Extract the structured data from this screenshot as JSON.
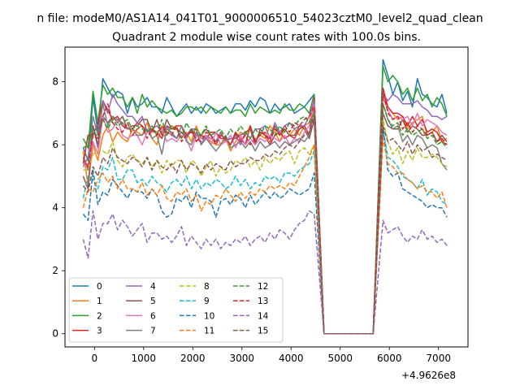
{
  "figure": {
    "suptitle": "n file: modeM0/AS1A14_041T01_9000006510_54023cztM0_level2_quad_clean",
    "title": "Quadrant 2 module wise count rates with 100.0s bins."
  },
  "chart_data": {
    "type": "line",
    "title": "Quadrant 2 module wise count rates with 100.0s bins.",
    "xlabel": "",
    "ylabel": "",
    "x_offset_label": "+4.9626e8",
    "xlim": [
      -600,
      7600
    ],
    "ylim": [
      -0.42,
      9.1
    ],
    "xticks": [
      0,
      1000,
      2000,
      3000,
      4000,
      5000,
      6000,
      7000
    ],
    "xtick_labels": [
      "0",
      "1000",
      "2000",
      "3000",
      "4000",
      "5000",
      "6000",
      "7000"
    ],
    "yticks": [
      0,
      2,
      4,
      6,
      8
    ],
    "ytick_labels": [
      "0",
      "2",
      "4",
      "6",
      "8"
    ],
    "grid": false,
    "legend_position": "lower-left",
    "legend_columns": 4,
    "x": [
      -230,
      -130,
      -30,
      70,
      170,
      270,
      370,
      470,
      570,
      670,
      770,
      870,
      970,
      1070,
      1170,
      1270,
      1370,
      1470,
      1570,
      1670,
      1770,
      1870,
      1970,
      2070,
      2170,
      2270,
      2370,
      2470,
      2570,
      2670,
      2770,
      2870,
      2970,
      3070,
      3170,
      3270,
      3370,
      3470,
      3570,
      3670,
      3770,
      3870,
      3970,
      4070,
      4170,
      4270,
      4370,
      4470,
      4670,
      5670,
      5870,
      5970,
      6070,
      6170,
      6270,
      6370,
      6470,
      6570,
      6670,
      6770,
      6870,
      6970,
      7070,
      7170
    ],
    "series": [
      {
        "name": "0",
        "color": "#1f77b4",
        "style": "solid",
        "values": [
          5.9,
          5.5,
          7.5,
          6.4,
          8.1,
          7.8,
          7.5,
          7.7,
          7.6,
          7.0,
          7.5,
          7.2,
          7.3,
          7.5,
          7.2,
          7.2,
          7.0,
          7.5,
          7.2,
          6.9,
          7.1,
          7.3,
          7.0,
          7.2,
          7.0,
          7.3,
          7.2,
          7.0,
          7.1,
          7.2,
          7.0,
          7.3,
          7.3,
          7.1,
          7.4,
          7.2,
          7.5,
          7.4,
          7.0,
          7.3,
          7.1,
          7.2,
          7.3,
          7.0,
          7.1,
          7.2,
          7.4,
          7.6,
          0,
          0,
          8.7,
          8.2,
          7.6,
          8.0,
          7.4,
          7.7,
          7.2,
          8.1,
          7.6,
          7.5,
          7.3,
          7.2,
          7.6,
          7.0
        ]
      },
      {
        "name": "1",
        "color": "#ff7f0e",
        "style": "solid",
        "values": [
          5.8,
          4.7,
          6.0,
          5.5,
          6.3,
          6.6,
          6.1,
          6.4,
          6.2,
          6.1,
          6.5,
          6.4,
          6.3,
          6.7,
          6.2,
          6.0,
          6.6,
          6.3,
          6.6,
          6.5,
          6.2,
          6.4,
          6.1,
          6.6,
          6.2,
          6.3,
          6.1,
          6.0,
          6.0,
          6.2,
          5.8,
          6.1,
          6.4,
          6.3,
          6.6,
          6.1,
          6.3,
          6.2,
          6.6,
          6.4,
          6.1,
          6.5,
          6.3,
          6.5,
          6.3,
          6.6,
          6.7,
          7.3,
          0,
          0,
          7.6,
          7.2,
          7.0,
          6.8,
          6.9,
          6.5,
          6.7,
          6.8,
          6.9,
          6.3,
          6.4,
          6.6,
          6.1,
          6.2
        ]
      },
      {
        "name": "2",
        "color": "#2ca02c",
        "style": "solid",
        "values": [
          6.2,
          5.9,
          7.7,
          6.7,
          7.9,
          7.6,
          7.8,
          7.5,
          7.5,
          7.2,
          7.5,
          7.0,
          7.6,
          7.2,
          7.4,
          7.2,
          7.1,
          7.0,
          7.1,
          6.9,
          7.0,
          7.2,
          7.2,
          7.1,
          7.2,
          7.0,
          7.2,
          7.1,
          7.0,
          7.2,
          7.0,
          7.1,
          7.1,
          6.9,
          7.3,
          7.0,
          7.2,
          7.1,
          7.0,
          7.1,
          7.0,
          7.3,
          7.1,
          7.1,
          7.3,
          7.2,
          7.0,
          7.6,
          0,
          0,
          8.5,
          8.0,
          8.2,
          8.0,
          7.6,
          7.8,
          7.4,
          7.8,
          7.4,
          7.6,
          7.2,
          7.5,
          7.3,
          6.9
        ]
      },
      {
        "name": "3",
        "color": "#d62728",
        "style": "solid",
        "values": [
          5.4,
          6.3,
          6.3,
          6.7,
          7.4,
          7.1,
          6.8,
          6.9,
          6.6,
          6.5,
          6.5,
          6.7,
          6.6,
          6.4,
          6.5,
          6.4,
          6.2,
          6.6,
          6.5,
          6.6,
          6.6,
          6.3,
          6.5,
          6.1,
          6.3,
          6.2,
          6.4,
          6.4,
          6.2,
          6.2,
          6.0,
          6.4,
          6.2,
          6.0,
          6.6,
          6.1,
          6.4,
          6.3,
          6.0,
          6.3,
          6.4,
          6.2,
          6.3,
          6.2,
          6.5,
          6.6,
          6.3,
          7.5,
          0,
          0,
          7.8,
          7.2,
          7.0,
          7.0,
          6.9,
          6.6,
          6.9,
          6.6,
          6.8,
          6.4,
          6.5,
          6.4,
          6.1,
          6.0
        ]
      },
      {
        "name": "4",
        "color": "#9467bd",
        "style": "solid",
        "values": [
          5.6,
          5.2,
          6.6,
          5.9,
          7.4,
          7.0,
          7.6,
          7.3,
          7.1,
          6.9,
          6.9,
          6.7,
          6.9,
          6.4,
          6.5,
          6.6,
          6.4,
          6.6,
          6.3,
          6.2,
          6.4,
          6.3,
          6.5,
          6.5,
          6.0,
          6.3,
          6.2,
          6.1,
          6.3,
          6.2,
          6.0,
          6.3,
          6.0,
          6.4,
          6.2,
          6.5,
          6.5,
          6.6,
          6.2,
          6.7,
          6.4,
          6.6,
          6.7,
          6.5,
          6.6,
          6.6,
          6.9,
          7.4,
          0,
          0,
          7.6,
          7.4,
          7.6,
          7.5,
          7.3,
          7.3,
          7.3,
          7.4,
          7.2,
          7.1,
          6.9,
          6.9,
          6.8,
          6.9
        ]
      },
      {
        "name": "5",
        "color": "#8c564b",
        "style": "solid",
        "values": [
          5.0,
          4.6,
          6.6,
          6.0,
          6.9,
          6.7,
          6.9,
          6.7,
          6.9,
          6.5,
          6.6,
          6.6,
          6.8,
          6.8,
          6.4,
          6.8,
          6.3,
          6.8,
          6.5,
          6.5,
          6.4,
          6.2,
          6.5,
          6.3,
          6.3,
          6.5,
          6.3,
          6.1,
          6.4,
          6.1,
          6.2,
          6.2,
          6.3,
          6.4,
          6.5,
          6.0,
          6.5,
          6.3,
          6.2,
          6.6,
          6.3,
          6.5,
          6.3,
          6.3,
          6.6,
          6.5,
          6.2,
          6.8,
          0,
          0,
          7.0,
          6.6,
          6.5,
          6.5,
          6.8,
          6.4,
          6.6,
          6.5,
          6.3,
          6.3,
          6.4,
          6.1,
          6.3,
          6.1
        ]
      },
      {
        "name": "6",
        "color": "#e377c2",
        "style": "solid",
        "values": [
          5.4,
          5.3,
          6.1,
          5.7,
          6.9,
          6.4,
          6.5,
          6.8,
          6.3,
          6.2,
          6.3,
          6.3,
          6.0,
          6.4,
          6.4,
          6.4,
          6.5,
          6.1,
          6.2,
          6.1,
          6.3,
          6.2,
          5.8,
          6.3,
          6.2,
          6.3,
          6.0,
          6.4,
          6.0,
          6.1,
          6.3,
          5.9,
          6.3,
          6.0,
          6.2,
          6.0,
          6.2,
          6.1,
          6.3,
          6.2,
          6.1,
          6.3,
          6.0,
          6.2,
          6.1,
          6.4,
          6.6,
          7.3,
          0,
          0,
          7.5,
          7.1,
          6.8,
          6.9,
          6.8,
          6.9,
          6.6,
          7.0,
          6.6,
          6.8,
          6.7,
          6.6,
          6.4,
          6.3
        ]
      },
      {
        "name": "7",
        "color": "#7f7f7f",
        "style": "solid",
        "values": [
          5.3,
          5.6,
          6.9,
          6.3,
          7.3,
          6.6,
          6.9,
          6.8,
          6.7,
          6.5,
          6.5,
          6.3,
          6.3,
          6.5,
          6.2,
          6.3,
          5.7,
          6.5,
          6.4,
          6.2,
          6.6,
          6.1,
          6.0,
          6.4,
          6.0,
          6.2,
          6.0,
          5.8,
          6.0,
          6.3,
          5.9,
          6.0,
          6.1,
          5.9,
          6.1,
          5.8,
          6.1,
          5.9,
          6.0,
          6.1,
          5.9,
          6.1,
          6.0,
          6.1,
          6.2,
          6.1,
          6.3,
          7.1,
          0,
          0,
          7.3,
          6.8,
          6.5,
          6.6,
          6.1,
          6.3,
          6.0,
          6.3,
          6.2,
          5.9,
          6.0,
          5.9,
          5.4,
          5.2
        ]
      },
      {
        "name": "8",
        "color": "#bcbd22",
        "style": "dashed",
        "values": [
          5.2,
          5.2,
          5.7,
          5.8,
          5.8,
          5.7,
          6.1,
          5.5,
          5.3,
          5.6,
          5.7,
          5.5,
          5.4,
          5.6,
          5.3,
          5.5,
          5.1,
          5.5,
          5.3,
          5.5,
          5.5,
          5.1,
          5.5,
          5.4,
          5.0,
          5.3,
          5.5,
          5.0,
          5.3,
          5.1,
          5.2,
          5.5,
          5.4,
          5.6,
          5.3,
          5.5,
          5.2,
          5.6,
          5.4,
          5.6,
          5.5,
          5.7,
          5.8,
          5.4,
          5.8,
          5.9,
          5.7,
          6.0,
          0,
          0,
          6.8,
          6.1,
          5.7,
          5.9,
          5.4,
          5.8,
          5.5,
          5.9,
          5.6,
          5.6,
          5.7,
          5.6,
          5.4,
          5.3
        ]
      },
      {
        "name": "9",
        "color": "#17becf",
        "style": "dashed",
        "values": [
          4.3,
          5.0,
          4.9,
          4.6,
          5.3,
          5.2,
          5.6,
          4.9,
          4.9,
          5.2,
          5.2,
          4.8,
          4.9,
          4.7,
          5.0,
          4.8,
          4.7,
          4.5,
          4.8,
          4.9,
          4.7,
          5.0,
          4.6,
          4.9,
          4.6,
          4.8,
          4.7,
          4.9,
          4.8,
          4.6,
          4.7,
          5.0,
          4.7,
          4.9,
          4.6,
          4.8,
          4.7,
          5.0,
          4.9,
          5.0,
          4.8,
          5.1,
          5.1,
          5.0,
          5.2,
          5.3,
          5.4,
          5.8,
          0,
          0,
          6.5,
          5.6,
          5.5,
          5.3,
          5.0,
          4.9,
          4.8,
          4.6,
          4.9,
          4.4,
          4.6,
          4.5,
          4.2,
          4.1
        ]
      },
      {
        "name": "10",
        "color": "#1f77b4",
        "style": "dashed",
        "values": [
          3.8,
          3.6,
          5.2,
          4.1,
          4.5,
          4.4,
          4.9,
          4.7,
          4.5,
          4.3,
          4.6,
          4.5,
          4.5,
          4.3,
          4.6,
          4.4,
          3.9,
          3.7,
          3.8,
          4.3,
          4.2,
          4.4,
          4.0,
          4.5,
          4.3,
          4.3,
          4.2,
          3.7,
          4.2,
          4.3,
          4.1,
          4.4,
          4.3,
          4.0,
          4.4,
          4.1,
          4.3,
          4.5,
          4.3,
          4.5,
          4.3,
          4.4,
          4.6,
          4.5,
          4.4,
          4.5,
          4.6,
          5.1,
          0,
          0,
          6.6,
          5.2,
          5.0,
          5.1,
          4.6,
          4.5,
          4.4,
          4.3,
          4.2,
          4.0,
          4.1,
          4.0,
          4.0,
          3.7
        ]
      },
      {
        "name": "11",
        "color": "#ff7f0e",
        "style": "dashed",
        "values": [
          4.0,
          4.6,
          4.5,
          4.9,
          5.1,
          4.8,
          5.0,
          4.6,
          4.9,
          4.6,
          4.6,
          4.5,
          4.8,
          4.4,
          4.6,
          4.4,
          4.7,
          4.3,
          4.2,
          4.5,
          4.4,
          4.6,
          4.2,
          4.4,
          3.9,
          4.2,
          4.1,
          4.4,
          4.3,
          4.6,
          4.4,
          4.2,
          4.5,
          4.3,
          4.5,
          4.4,
          4.6,
          4.5,
          4.7,
          4.6,
          4.7,
          4.6,
          4.8,
          4.7,
          5.0,
          5.3,
          5.6,
          6.0,
          0,
          0,
          6.2,
          5.4,
          5.3,
          5.1,
          5.1,
          4.9,
          4.8,
          4.6,
          4.7,
          4.5,
          4.5,
          4.3,
          4.5,
          4.0
        ]
      },
      {
        "name": "12",
        "color": "#2ca02c",
        "style": "dashed",
        "values": [
          5.9,
          6.0,
          6.5,
          6.2,
          6.8,
          6.5,
          6.8,
          6.6,
          6.7,
          6.8,
          6.5,
          6.6,
          6.5,
          6.4,
          6.6,
          6.3,
          6.8,
          6.3,
          6.6,
          6.5,
          6.2,
          6.7,
          6.4,
          6.5,
          6.3,
          6.6,
          6.3,
          6.4,
          6.5,
          6.2,
          6.5,
          6.3,
          6.6,
          6.4,
          6.2,
          6.5,
          6.3,
          6.6,
          6.5,
          6.3,
          6.6,
          6.4,
          6.7,
          6.6,
          6.8,
          6.9,
          6.7,
          7.0,
          0,
          0,
          7.3,
          6.8,
          6.6,
          6.7,
          6.3,
          6.5,
          6.3,
          6.4,
          6.5,
          6.2,
          6.3,
          6.0,
          6.1,
          5.9
        ]
      },
      {
        "name": "13",
        "color": "#d62728",
        "style": "dashed",
        "values": [
          5.6,
          5.3,
          6.3,
          6.2,
          6.9,
          7.3,
          6.7,
          6.5,
          6.4,
          6.7,
          6.3,
          6.5,
          6.6,
          6.2,
          6.5,
          6.3,
          6.6,
          6.4,
          6.3,
          6.6,
          6.1,
          6.3,
          6.4,
          6.2,
          6.1,
          6.4,
          6.3,
          6.0,
          6.3,
          6.2,
          6.0,
          6.4,
          6.1,
          6.3,
          6.0,
          6.2,
          6.3,
          6.4,
          6.1,
          6.5,
          6.3,
          6.6,
          6.4,
          6.7,
          6.6,
          6.8,
          6.9,
          7.2,
          0,
          0,
          7.7,
          7.0,
          6.8,
          6.9,
          6.5,
          6.7,
          6.4,
          6.6,
          6.5,
          6.3,
          6.4,
          6.1,
          6.2,
          6.0
        ]
      },
      {
        "name": "14",
        "color": "#9467bd",
        "style": "dashed",
        "values": [
          3.0,
          2.4,
          3.9,
          3.0,
          3.5,
          3.5,
          3.8,
          3.3,
          3.6,
          3.4,
          3.1,
          3.3,
          3.5,
          2.9,
          3.2,
          3.2,
          3.0,
          3.1,
          2.9,
          3.1,
          3.4,
          2.8,
          3.1,
          2.9,
          2.7,
          3.0,
          2.8,
          3.0,
          2.7,
          2.9,
          2.8,
          3.0,
          2.9,
          3.1,
          2.8,
          3.0,
          3.1,
          2.9,
          3.2,
          3.0,
          3.3,
          3.2,
          3.0,
          3.3,
          3.5,
          3.6,
          3.9,
          3.8,
          0,
          0,
          3.6,
          3.2,
          3.3,
          3.4,
          3.1,
          2.9,
          3.1,
          3.0,
          3.3,
          3.0,
          3.1,
          2.9,
          3.0,
          2.8
        ]
      },
      {
        "name": "15",
        "color": "#8c564b",
        "style": "dashed",
        "values": [
          4.7,
          4.5,
          5.3,
          5.0,
          5.6,
          5.4,
          5.9,
          5.6,
          5.5,
          5.4,
          5.6,
          5.5,
          5.3,
          5.6,
          5.2,
          5.5,
          5.3,
          5.2,
          5.4,
          5.1,
          5.5,
          5.2,
          5.4,
          5.3,
          5.1,
          5.4,
          5.2,
          5.4,
          5.3,
          5.2,
          5.5,
          5.3,
          5.4,
          5.4,
          5.6,
          5.5,
          5.5,
          5.7,
          5.6,
          5.8,
          5.7,
          5.9,
          6.0,
          5.9,
          6.1,
          6.3,
          6.4,
          6.9,
          0,
          0,
          6.6,
          6.1,
          6.2,
          6.0,
          5.8,
          6.1,
          5.7,
          6.0,
          5.8,
          5.9,
          5.6,
          5.7,
          5.6,
          5.5
        ]
      }
    ]
  }
}
